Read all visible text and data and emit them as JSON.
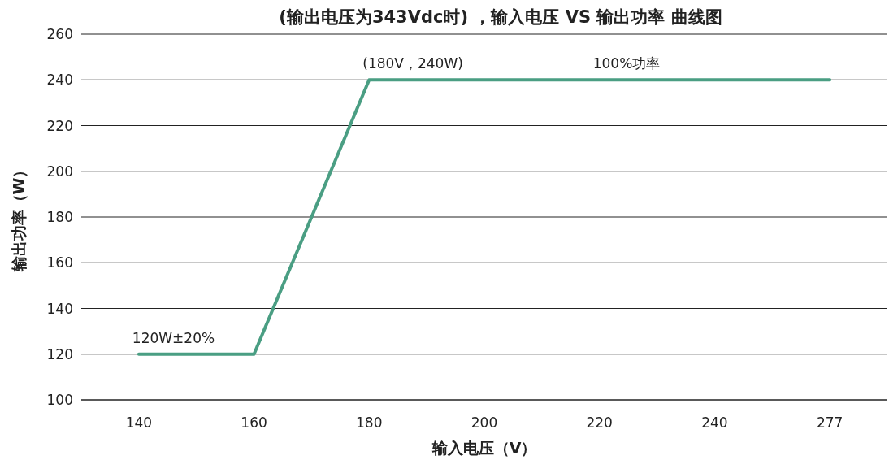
{
  "chart_data": {
    "type": "line",
    "title": "(输出电压为343Vdc时) ，输入电压 VS 输出功率 曲线图",
    "xlabel": "输入电压（V）",
    "ylabel": "输出功率（W）",
    "categories": [
      "140",
      "160",
      "180",
      "200",
      "220",
      "240",
      "277"
    ],
    "series": [
      {
        "color": "#4a9e83",
        "values": [
          120,
          120,
          240,
          240,
          240,
          240,
          240
        ]
      }
    ],
    "ylim": [
      100,
      260
    ],
    "yticks": [
      100,
      120,
      140,
      160,
      180,
      200,
      220,
      240,
      260
    ],
    "grid": "y",
    "marker": "none",
    "line_style": "solid",
    "annotations": [
      {
        "text": "120W±20%",
        "x": "140",
        "y": 120
      },
      {
        "text": "(180V，240W)",
        "x": "180",
        "y": 240
      },
      {
        "text": "100%功率",
        "x": "220",
        "y": 240
      }
    ]
  }
}
